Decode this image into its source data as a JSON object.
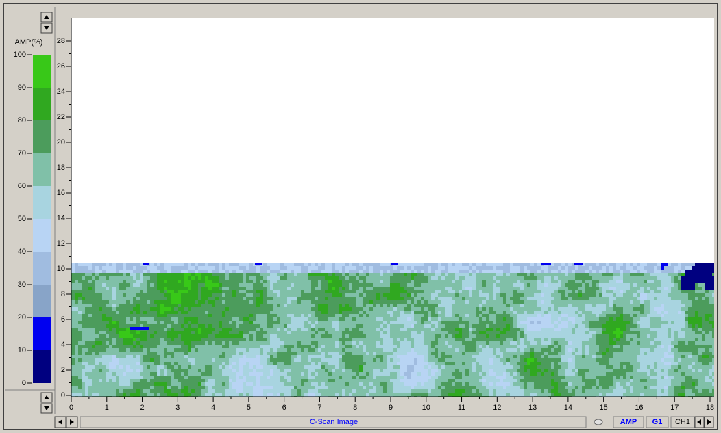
{
  "left_panel": {
    "unit_label": "AMP(%)",
    "colorbar": {
      "ticks": [
        0,
        10,
        20,
        30,
        40,
        50,
        60,
        70,
        80,
        90,
        100
      ],
      "colors": [
        "#000080",
        "#0000f0",
        "#88a4c8",
        "#a0bce0",
        "#b8d4f4",
        "#a8d4e0",
        "#80c0a8",
        "#4c9c5c",
        "#30a820",
        "#38c818"
      ]
    }
  },
  "plot": {
    "yticks": [
      0,
      2,
      4,
      6,
      8,
      10,
      12,
      14,
      16,
      18,
      20,
      22,
      24,
      26,
      28
    ],
    "xticks": [
      0,
      1,
      2,
      3,
      4,
      5,
      6,
      7,
      8,
      9,
      10,
      11,
      12,
      13,
      14,
      15,
      16,
      17,
      18
    ]
  },
  "status_bar": {
    "caption": "C-Scan Image",
    "buttons": [
      "AMP",
      "G1",
      "CH1"
    ]
  }
}
